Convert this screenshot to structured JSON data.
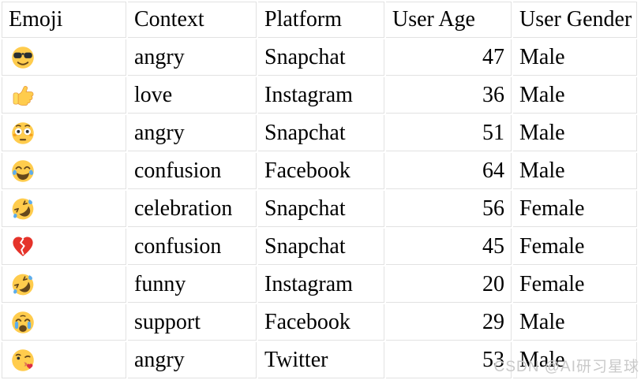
{
  "table": {
    "columns": [
      {
        "key": "emoji",
        "label": "Emoji"
      },
      {
        "key": "context",
        "label": "Context"
      },
      {
        "key": "platform",
        "label": "Platform"
      },
      {
        "key": "user_age",
        "label": "User Age"
      },
      {
        "key": "user_gender",
        "label": "User Gender"
      }
    ],
    "rows": [
      {
        "emoji": "😎",
        "emoji_icon": "smiling-face-with-sunglasses-icon",
        "context": "angry",
        "platform": "Snapchat",
        "user_age": 47,
        "user_gender": "Male"
      },
      {
        "emoji": "👍",
        "emoji_icon": "thumbs-up-icon",
        "context": "love",
        "platform": "Instagram",
        "user_age": 36,
        "user_gender": "Male"
      },
      {
        "emoji": "😳",
        "emoji_icon": "flushed-face-icon",
        "context": "angry",
        "platform": "Snapchat",
        "user_age": 51,
        "user_gender": "Male"
      },
      {
        "emoji": "😂",
        "emoji_icon": "face-with-tears-of-joy-icon",
        "context": "confusion",
        "platform": "Facebook",
        "user_age": 64,
        "user_gender": "Male"
      },
      {
        "emoji": "🤣",
        "emoji_icon": "rolling-on-floor-laughing-icon",
        "context": "celebration",
        "platform": "Snapchat",
        "user_age": 56,
        "user_gender": "Female"
      },
      {
        "emoji": "💔",
        "emoji_icon": "broken-heart-icon",
        "context": "confusion",
        "platform": "Snapchat",
        "user_age": 45,
        "user_gender": "Female"
      },
      {
        "emoji": "🤣",
        "emoji_icon": "rolling-on-floor-laughing-icon",
        "context": "funny",
        "platform": "Instagram",
        "user_age": 20,
        "user_gender": "Female"
      },
      {
        "emoji": "😭",
        "emoji_icon": "loudly-crying-face-icon",
        "context": "support",
        "platform": "Facebook",
        "user_age": 29,
        "user_gender": "Male"
      },
      {
        "emoji": "😘",
        "emoji_icon": "face-blowing-kiss-icon",
        "context": "angry",
        "platform": "Twitter",
        "user_age": 53,
        "user_gender": "Male"
      }
    ]
  },
  "watermark": {
    "text": "CSDN @AI研习星球"
  },
  "colors": {
    "border": "#e2e2e2",
    "text": "#000000",
    "background": "#ffffff",
    "watermark": "#c9c9c9",
    "emoji_face_yellow": "#FFCC4D",
    "emoji_tear_blue": "#5DADEC",
    "emoji_heart_red": "#E5332A"
  }
}
